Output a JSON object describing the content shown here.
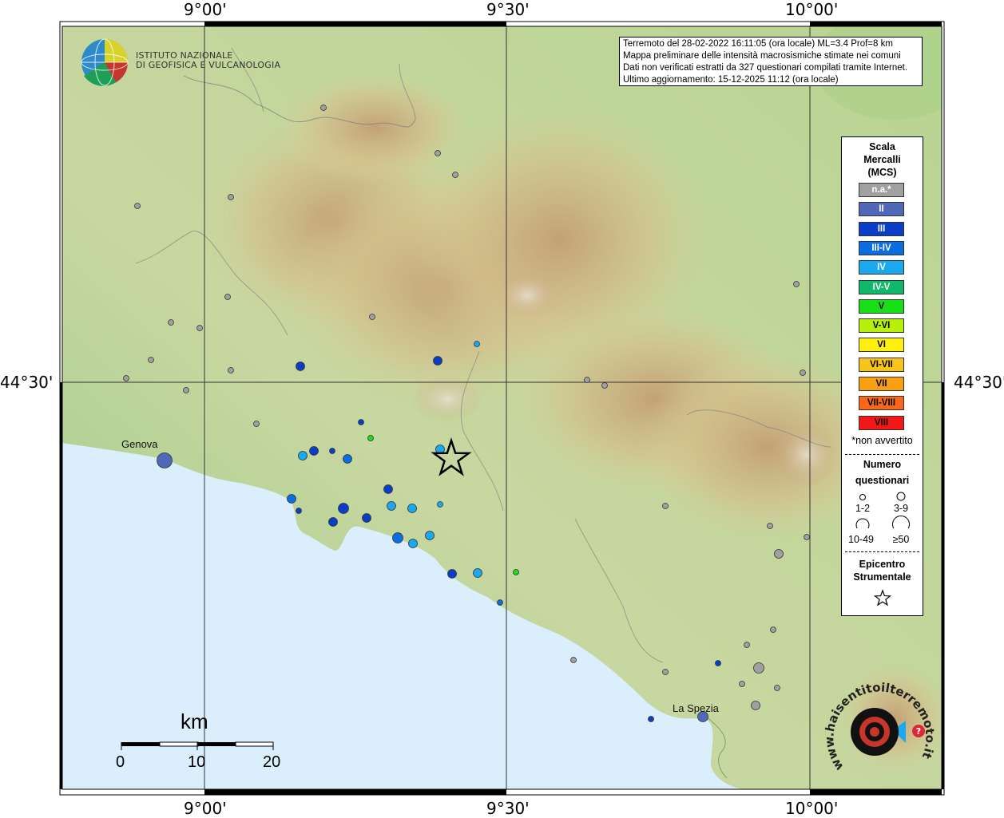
{
  "map": {
    "lon_labels": [
      "9°00'",
      "9°30'",
      "10°00'"
    ],
    "lat_label": "44°30'",
    "colors": {
      "sea": "#dbeefb",
      "graticule": "#333333"
    }
  },
  "institute": {
    "line1": "ISTITUTO NAZIONALE",
    "line2": "DI GEOFISICA E VULCANOLOGIA"
  },
  "info": {
    "line1": "Terremoto del 28-02-2022 16:11:05 (ora locale) ML=3.4 Prof=8 km",
    "line2": "Mappa preliminare delle intensità macrosismiche stimate nei comuni",
    "line3": "Dati non verificati estratti da 327 questionari compilati tramite Internet.",
    "line4": "Ultimo aggiornamento: 15-12-2025 11:12 (ora locale)"
  },
  "legend": {
    "title": [
      "Scala",
      "Mercalli",
      "(MCS)"
    ],
    "classes": [
      {
        "label": "n.a.*",
        "color": "#a0a0a0"
      },
      {
        "label": "II",
        "color": "#5068b8"
      },
      {
        "label": "III",
        "color": "#0a3ec8"
      },
      {
        "label": "III-IV",
        "color": "#0a6ee0"
      },
      {
        "label": "IV",
        "color": "#1aa8f0"
      },
      {
        "label": "IV-V",
        "color": "#12b86a"
      },
      {
        "label": "V",
        "color": "#18e018"
      },
      {
        "label": "V-VI",
        "color": "#b8f00a"
      },
      {
        "label": "VI",
        "color": "#fff010"
      },
      {
        "label": "VI-VII",
        "color": "#f8c418"
      },
      {
        "label": "VII",
        "color": "#f8a010"
      },
      {
        "label": "VII-VIII",
        "color": "#f86818"
      },
      {
        "label": "VIII",
        "color": "#f01818"
      }
    ],
    "note": "*non avvertito",
    "questionari_head": [
      "Numero",
      "questionari"
    ],
    "questionari": [
      "1-2",
      "3-9",
      "10-49",
      "≥50"
    ],
    "epicenter_head": [
      "Epicentro",
      "Strumentale"
    ]
  },
  "cities": {
    "genova": "Genova",
    "spezia": "La Spezia"
  },
  "scale": {
    "unit": "km",
    "ticks": [
      "0",
      "10",
      "20"
    ]
  },
  "brand": {
    "text": "www.haisentitoilterremoto.it"
  }
}
